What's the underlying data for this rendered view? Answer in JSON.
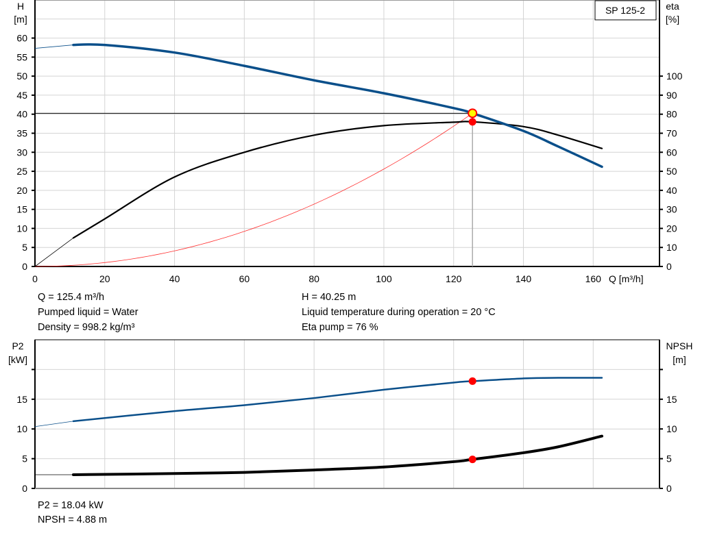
{
  "chart_data": [
    {
      "type": "line",
      "title": "SP 125-2",
      "xlabel": "Q [m³/h]",
      "ylabel": "H\n[m]",
      "ylabel_lines": [
        "H",
        "[m]"
      ],
      "y2label_lines": [
        "eta",
        "[%]"
      ],
      "x_ticks": [
        0,
        20,
        40,
        60,
        80,
        100,
        120,
        140,
        160
      ],
      "y_ticks": [
        0,
        5,
        10,
        15,
        20,
        25,
        30,
        35,
        40,
        45,
        50,
        55,
        60
      ],
      "y2_ticks": [
        0,
        10,
        20,
        30,
        40,
        50,
        60,
        70,
        80,
        90,
        100
      ],
      "xlim": [
        0,
        179
      ],
      "ylim": [
        0,
        70
      ],
      "y2lim": [
        0,
        140
      ],
      "grid": true,
      "series": [
        {
          "key": "H",
          "axis": "left",
          "color": "#0a4f8a",
          "x": [
            0,
            11,
            20,
            40,
            60,
            80,
            100,
            120,
            125.4,
            140,
            150,
            162.5
          ],
          "y": [
            57.3,
            58.2,
            58.2,
            56.2,
            52.7,
            48.9,
            45.5,
            41.6,
            40.25,
            35.6,
            31.5,
            26.2
          ]
        },
        {
          "key": "eta",
          "axis": "right",
          "color": "#000000",
          "x": [
            0,
            11,
            20,
            40,
            60,
            80,
            100,
            120,
            125.4,
            140,
            150,
            162.5
          ],
          "y": [
            0,
            15,
            25,
            47,
            60,
            69,
            74,
            75.8,
            76,
            73.5,
            69,
            62
          ]
        },
        {
          "key": "system",
          "axis": "left",
          "color": "#ff3030",
          "type": "parabola",
          "x": [
            0,
            125.4
          ],
          "y": [
            0,
            40.25
          ]
        }
      ],
      "duty_point": {
        "Q": 125.4,
        "H": 40.25,
        "eta": 76
      },
      "info": {
        "left": [
          "Q = 125.4 m³/h",
          "Pumped liquid = Water",
          "Density = 998.2 kg/m³"
        ],
        "right": [
          "H = 40.25 m",
          "Liquid temperature during operation = 20 °C",
          "Eta pump = 76 %"
        ]
      }
    },
    {
      "type": "line",
      "ylabel_lines": [
        "P2",
        "[kW]"
      ],
      "y2label_lines": [
        "NPSH",
        "[m]"
      ],
      "y_ticks": [
        0,
        5,
        10,
        15
      ],
      "y2_ticks": [
        0,
        5,
        10,
        15
      ],
      "xlim": [
        0,
        179
      ],
      "ylim": [
        0,
        25
      ],
      "grid": true,
      "series": [
        {
          "key": "P2",
          "axis": "left",
          "color": "#0a4f8a",
          "x": [
            0,
            11,
            40,
            60,
            80,
            100,
            120,
            125.4,
            140,
            150,
            162.5
          ],
          "y": [
            10.4,
            11.3,
            13,
            14,
            15.2,
            16.6,
            17.8,
            18.04,
            18.5,
            18.6,
            18.6
          ]
        },
        {
          "key": "NPSH",
          "axis": "right",
          "color": "#000000",
          "x": [
            0,
            11,
            40,
            60,
            80,
            100,
            120,
            125.4,
            140,
            150,
            162.5
          ],
          "y": [
            2.3,
            2.3,
            2.5,
            2.7,
            3.1,
            3.6,
            4.5,
            4.88,
            6,
            7,
            8.8
          ]
        }
      ],
      "duty_point": {
        "Q": 125.4,
        "P2": 18.04,
        "NPSH": 4.88
      },
      "info": {
        "left": [
          "P2 = 18.04 kW",
          "NPSH = 4.88 m"
        ]
      }
    }
  ]
}
